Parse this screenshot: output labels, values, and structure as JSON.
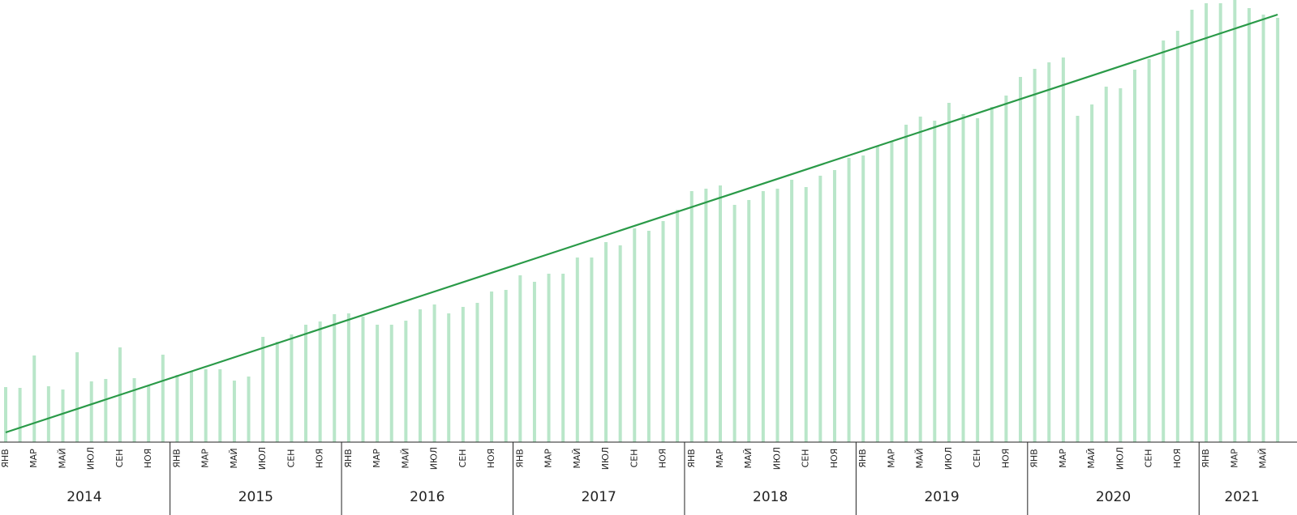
{
  "chart_data": {
    "type": "bar",
    "categories": [
      "ЯНВ",
      null,
      "МАР",
      null,
      "МАЙ",
      null,
      "ИЮЛ",
      null,
      "СЕН",
      null,
      "НОЯ",
      null,
      "ЯНВ",
      null,
      "МАР",
      null,
      "МАЙ",
      null,
      "ИЮЛ",
      null,
      "СЕН",
      null,
      "НОЯ",
      null,
      "ЯНВ",
      null,
      "МАР",
      null,
      "МАЙ",
      null,
      "ИЮЛ",
      null,
      "СЕН",
      null,
      "НОЯ",
      null,
      "ЯНВ",
      null,
      "МАР",
      null,
      "МАЙ",
      null,
      "ИЮЛ",
      null,
      "СЕН",
      null,
      "НОЯ",
      null,
      "ЯНВ",
      null,
      "МАР",
      null,
      "МАЙ",
      null,
      "ИЮЛ",
      null,
      "СЕН",
      null,
      "НОЯ",
      null,
      "ЯНВ",
      null,
      "МАР",
      null,
      "МАЙ",
      null,
      "ИЮЛ",
      null,
      "СЕН",
      null,
      "НОЯ",
      null,
      "ЯНВ",
      null,
      "МАР",
      null,
      "МАЙ",
      null,
      "ИЮЛ",
      null,
      "СЕН",
      null,
      "НОЯ",
      null,
      "ЯНВ",
      null,
      "МАР",
      null,
      "МАЙ",
      null
    ],
    "years": [
      "2014",
      "2015",
      "2016",
      "2017",
      "2018",
      "2019",
      "2020",
      "2021"
    ],
    "values": [
      68,
      67,
      107,
      69,
      65,
      111,
      75,
      78,
      117,
      79,
      70,
      108,
      83,
      87,
      90,
      90,
      76,
      81,
      130,
      124,
      133,
      145,
      149,
      158,
      159,
      155,
      145,
      145,
      150,
      164,
      170,
      159,
      167,
      172,
      186,
      188,
      206,
      198,
      208,
      208,
      228,
      228,
      247,
      243,
      264,
      261,
      273,
      287,
      310,
      313,
      317,
      293,
      299,
      310,
      313,
      324,
      315,
      329,
      336,
      351,
      354,
      366,
      372,
      392,
      402,
      397,
      419,
      405,
      400,
      414,
      428,
      451,
      461,
      469,
      475,
      403,
      417,
      439,
      437,
      460,
      473,
      496,
      508,
      534,
      542,
      542,
      546,
      536,
      528,
      524
    ],
    "color": "#b9e6c9",
    "trend": {
      "values": [
        12,
        528
      ],
      "color": "#2a9a48"
    },
    "ylim": [
      0,
      546
    ]
  }
}
